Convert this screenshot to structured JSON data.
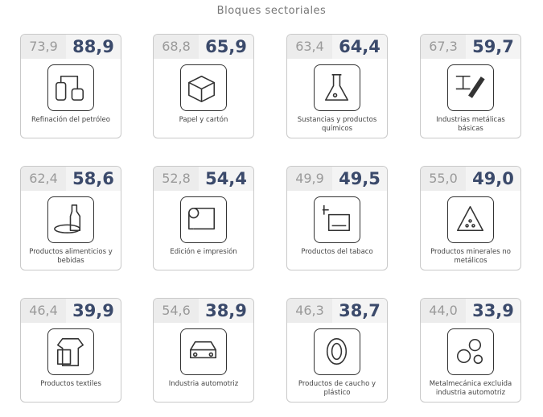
{
  "header": {
    "title": "Bloques sectoriales"
  },
  "cards": [
    {
      "previous": "73,9",
      "current": "88,9",
      "label": "Refinación del petróleo"
    },
    {
      "previous": "68,8",
      "current": "65,9",
      "label": "Papel y cartón"
    },
    {
      "previous": "63,4",
      "current": "64,4",
      "label": "Sustancias y productos químicos"
    },
    {
      "previous": "67,3",
      "current": "59,7",
      "label": "Industrias metálicas básicas"
    },
    {
      "previous": "62,4",
      "current": "58,6",
      "label": "Productos alimenticios y bebidas"
    },
    {
      "previous": "52,8",
      "current": "54,4",
      "label": "Edición e impresión"
    },
    {
      "previous": "49,9",
      "current": "49,5",
      "label": "Productos del tabaco"
    },
    {
      "previous": "55,0",
      "current": "49,0",
      "label": "Productos minerales no metálicos"
    },
    {
      "previous": "46,4",
      "current": "39,9",
      "label": "Productos textiles"
    },
    {
      "previous": "54,6",
      "current": "38,9",
      "label": "Industria automotriz"
    },
    {
      "previous": "46,3",
      "current": "38,7",
      "label": "Productos de caucho y plástico"
    },
    {
      "previous": "44,0",
      "current": "33,9",
      "label": "Metalmecánica excluida industria automotriz"
    }
  ]
}
